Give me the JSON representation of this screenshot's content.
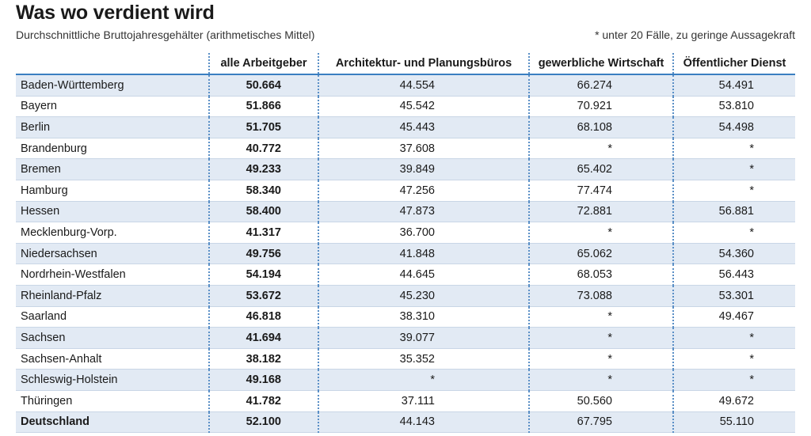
{
  "title": "Was wo verdient wird",
  "subtitle": "Durchschnittliche Bruttojahresgehälter (arithmetisches Mittel)",
  "note": "* unter 20 Fälle, zu geringe Aussagekraft",
  "chart_data": {
    "type": "table",
    "columns": [
      "",
      "alle Arbeitgeber",
      "Architektur- und Planungsbüros",
      "gewerbliche Wirtschaft",
      "Öffentlicher Dienst"
    ],
    "rows": [
      {
        "label": "Baden-Württemberg",
        "values": [
          "50.664",
          "44.554",
          "66.274",
          "54.491"
        ]
      },
      {
        "label": "Bayern",
        "values": [
          "51.866",
          "45.542",
          "70.921",
          "53.810"
        ]
      },
      {
        "label": "Berlin",
        "values": [
          "51.705",
          "45.443",
          "68.108",
          "54.498"
        ]
      },
      {
        "label": "Brandenburg",
        "values": [
          "40.772",
          "37.608",
          "*",
          "*"
        ]
      },
      {
        "label": "Bremen",
        "values": [
          "49.233",
          "39.849",
          "65.402",
          "*"
        ]
      },
      {
        "label": "Hamburg",
        "values": [
          "58.340",
          "47.256",
          "77.474",
          "*"
        ]
      },
      {
        "label": "Hessen",
        "values": [
          "58.400",
          "47.873",
          "72.881",
          "56.881"
        ]
      },
      {
        "label": "Mecklenburg-Vorp.",
        "values": [
          "41.317",
          "36.700",
          "*",
          "*"
        ]
      },
      {
        "label": "Niedersachsen",
        "values": [
          "49.756",
          "41.848",
          "65.062",
          "54.360"
        ]
      },
      {
        "label": "Nordrhein-Westfalen",
        "values": [
          "54.194",
          "44.645",
          "68.053",
          "56.443"
        ]
      },
      {
        "label": "Rheinland-Pfalz",
        "values": [
          "53.672",
          "45.230",
          "73.088",
          "53.301"
        ]
      },
      {
        "label": "Saarland",
        "values": [
          "46.818",
          "38.310",
          "*",
          "49.467"
        ]
      },
      {
        "label": "Sachsen",
        "values": [
          "41.694",
          "39.077",
          "*",
          "*"
        ]
      },
      {
        "label": "Sachsen-Anhalt",
        "values": [
          "38.182",
          "35.352",
          "*",
          "*"
        ]
      },
      {
        "label": "Schleswig-Holstein",
        "values": [
          "49.168",
          "*",
          "*",
          "*"
        ]
      },
      {
        "label": "Thüringen",
        "values": [
          "41.782",
          "37.111",
          "50.560",
          "49.672"
        ]
      },
      {
        "label": "Deutschland",
        "values": [
          "52.100",
          "44.143",
          "67.795",
          "55.110"
        ]
      }
    ]
  }
}
